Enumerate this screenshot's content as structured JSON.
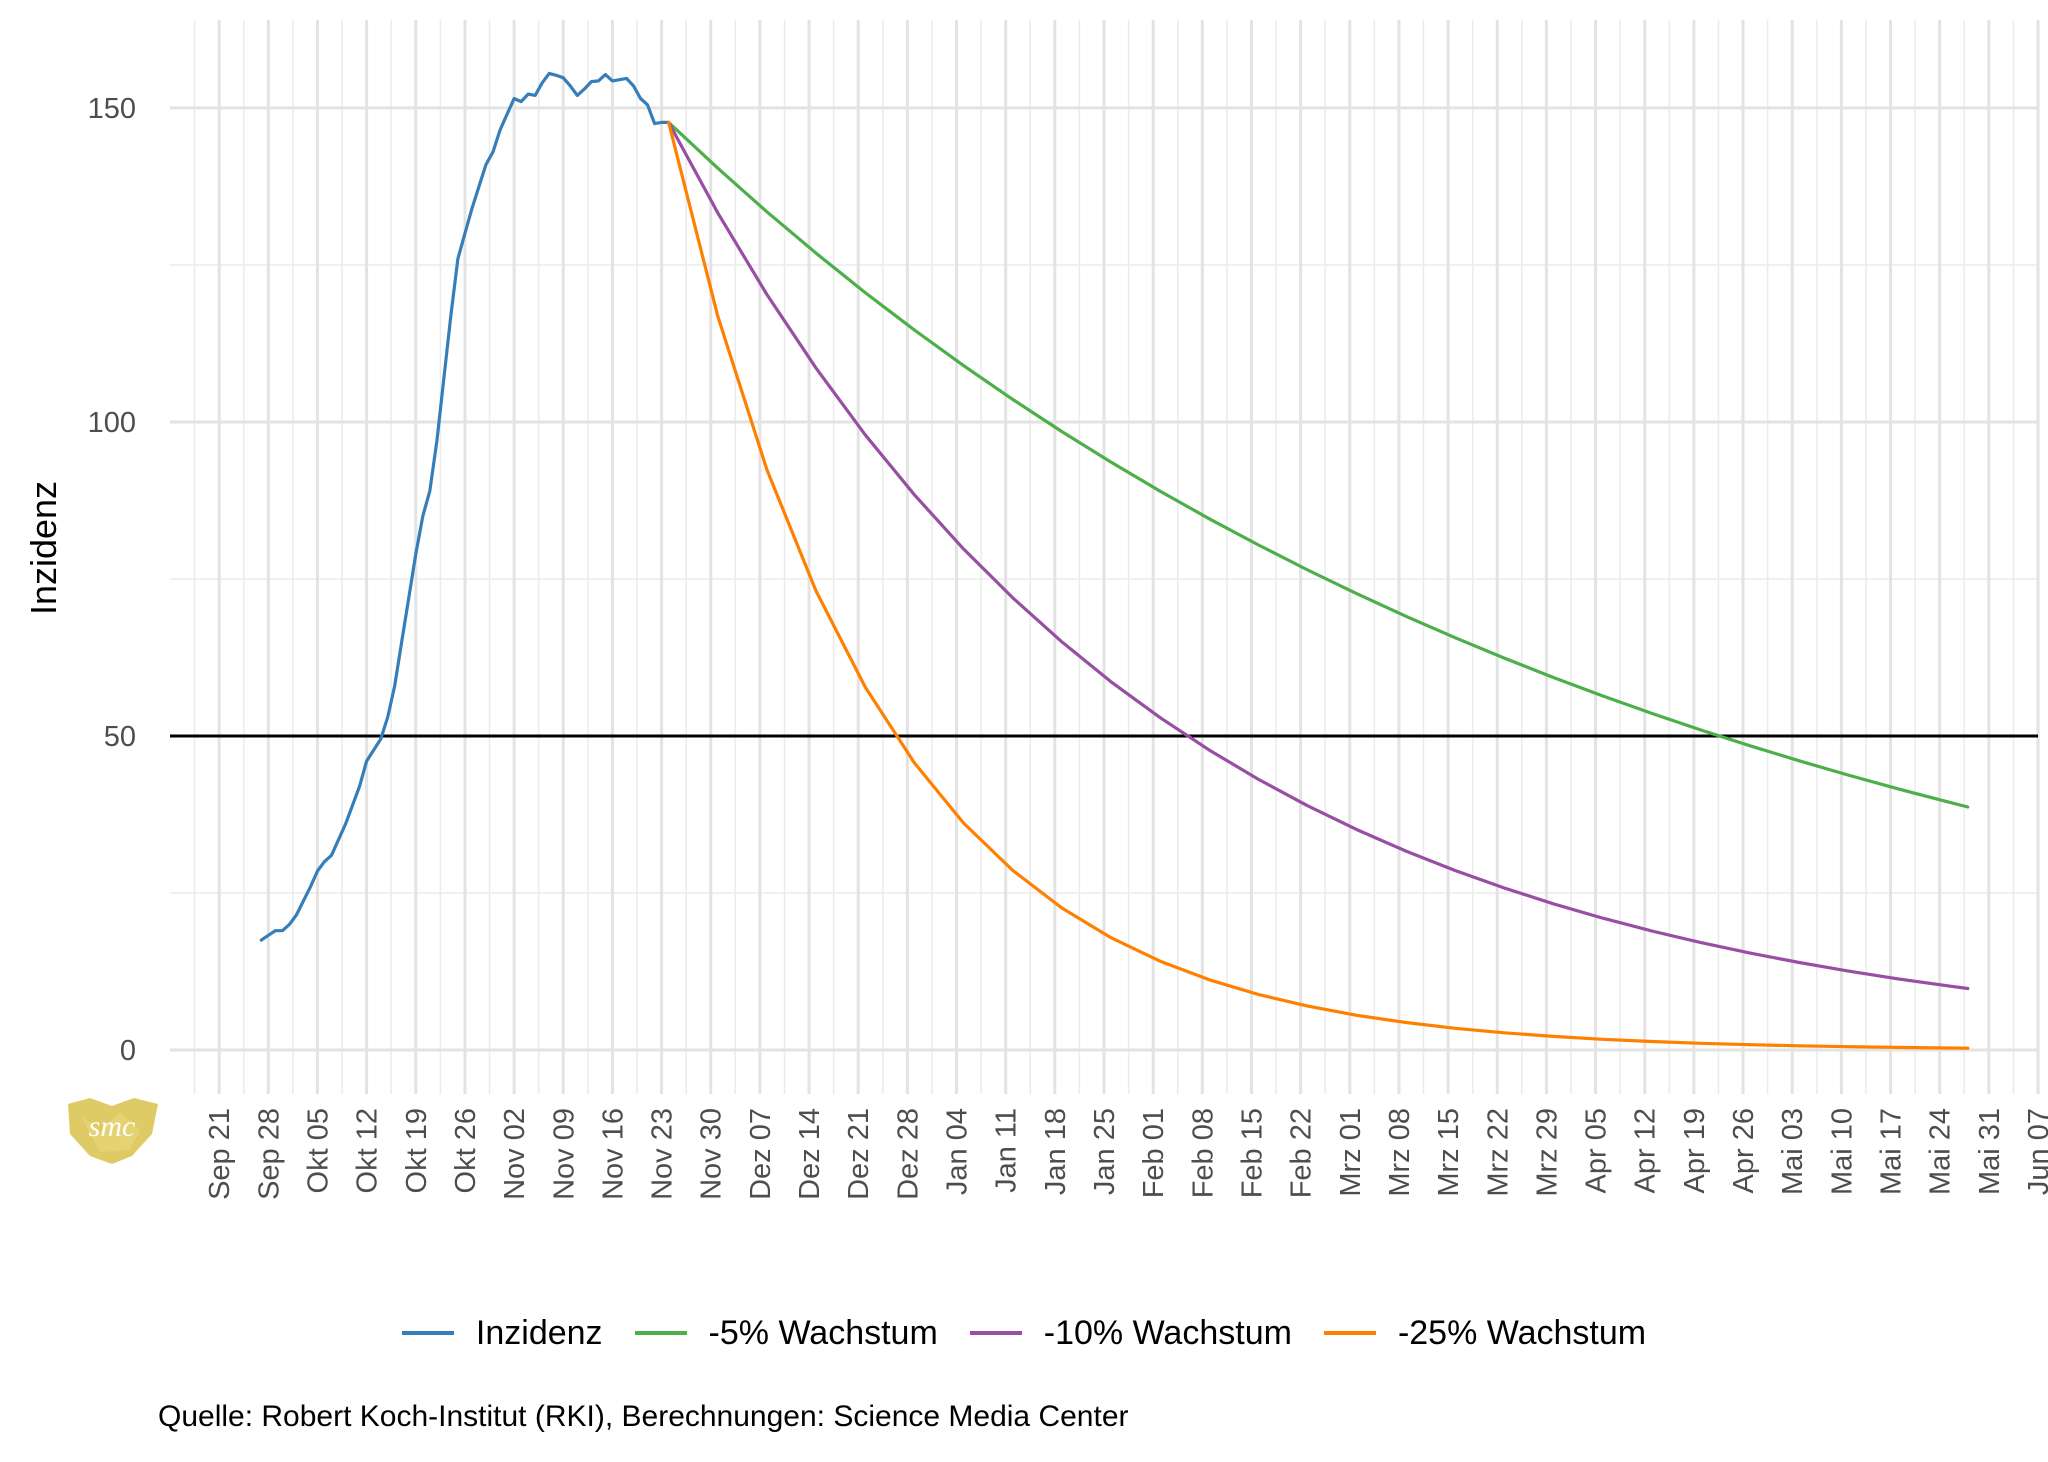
{
  "chart_data": {
    "type": "line",
    "title": "",
    "xlabel": "",
    "ylabel": "Inzidenz",
    "ylim": [
      -7,
      164
    ],
    "x_range": [
      "2020-09-14",
      "2021-06-07"
    ],
    "y_ticks": [
      0,
      50,
      100,
      150
    ],
    "x_ticks": [
      {
        "date": "2020-09-21",
        "label": "Sep 21"
      },
      {
        "date": "2020-09-28",
        "label": "Sep 28"
      },
      {
        "date": "2020-10-05",
        "label": "Okt 05"
      },
      {
        "date": "2020-10-12",
        "label": "Okt 12"
      },
      {
        "date": "2020-10-19",
        "label": "Okt 19"
      },
      {
        "date": "2020-10-26",
        "label": "Okt 26"
      },
      {
        "date": "2020-11-02",
        "label": "Nov 02"
      },
      {
        "date": "2020-11-09",
        "label": "Nov 09"
      },
      {
        "date": "2020-11-16",
        "label": "Nov 16"
      },
      {
        "date": "2020-11-23",
        "label": "Nov 23"
      },
      {
        "date": "2020-11-30",
        "label": "Nov 30"
      },
      {
        "date": "2020-12-07",
        "label": "Dez 07"
      },
      {
        "date": "2020-12-14",
        "label": "Dez 14"
      },
      {
        "date": "2020-12-21",
        "label": "Dez 21"
      },
      {
        "date": "2020-12-28",
        "label": "Dez 28"
      },
      {
        "date": "2021-01-04",
        "label": "Jan 04"
      },
      {
        "date": "2021-01-11",
        "label": "Jan 11"
      },
      {
        "date": "2021-01-18",
        "label": "Jan 18"
      },
      {
        "date": "2021-01-25",
        "label": "Jan 25"
      },
      {
        "date": "2021-02-01",
        "label": "Feb 01"
      },
      {
        "date": "2021-02-08",
        "label": "Feb 08"
      },
      {
        "date": "2021-02-15",
        "label": "Feb 15"
      },
      {
        "date": "2021-02-22",
        "label": "Feb 22"
      },
      {
        "date": "2021-03-01",
        "label": "Mrz 01"
      },
      {
        "date": "2021-03-08",
        "label": "Mrz 08"
      },
      {
        "date": "2021-03-15",
        "label": "Mrz 15"
      },
      {
        "date": "2021-03-22",
        "label": "Mrz 22"
      },
      {
        "date": "2021-03-29",
        "label": "Mrz 29"
      },
      {
        "date": "2021-04-05",
        "label": "Apr 05"
      },
      {
        "date": "2021-04-12",
        "label": "Apr 12"
      },
      {
        "date": "2021-04-19",
        "label": "Apr 19"
      },
      {
        "date": "2021-04-26",
        "label": "Apr 26"
      },
      {
        "date": "2021-05-03",
        "label": "Mai 03"
      },
      {
        "date": "2021-05-10",
        "label": "Mai 10"
      },
      {
        "date": "2021-05-17",
        "label": "Mai 17"
      },
      {
        "date": "2021-05-24",
        "label": "Mai 24"
      },
      {
        "date": "2021-05-31",
        "label": "Mai 31"
      },
      {
        "date": "2021-06-07",
        "label": "Jun 07"
      }
    ],
    "hline": 50,
    "grid": true,
    "legend_position": "bottom",
    "series": [
      {
        "name": "Inzidenz",
        "color": "#377eb8",
        "points": [
          [
            "2020-09-27",
            17.5
          ],
          [
            "2020-09-29",
            19
          ],
          [
            "2020-09-30",
            19
          ],
          [
            "2020-10-01",
            20
          ],
          [
            "2020-10-02",
            21.5
          ],
          [
            "2020-10-04",
            26
          ],
          [
            "2020-10-05",
            28.5
          ],
          [
            "2020-10-06",
            30
          ],
          [
            "2020-10-07",
            31
          ],
          [
            "2020-10-09",
            36
          ],
          [
            "2020-10-11",
            42
          ],
          [
            "2020-10-12",
            46
          ],
          [
            "2020-10-14",
            49.5
          ],
          [
            "2020-10-15",
            53
          ],
          [
            "2020-10-16",
            58
          ],
          [
            "2020-10-17",
            65
          ],
          [
            "2020-10-18",
            72
          ],
          [
            "2020-10-19",
            79
          ],
          [
            "2020-10-20",
            85
          ],
          [
            "2020-10-21",
            89
          ],
          [
            "2020-10-22",
            97
          ],
          [
            "2020-10-23",
            107
          ],
          [
            "2020-10-24",
            117
          ],
          [
            "2020-10-25",
            126
          ],
          [
            "2020-10-26",
            130
          ],
          [
            "2020-10-27",
            134
          ],
          [
            "2020-10-28",
            137.5
          ],
          [
            "2020-10-29",
            141
          ],
          [
            "2020-10-30",
            143
          ],
          [
            "2020-10-31",
            146.5
          ],
          [
            "2020-11-01",
            149
          ],
          [
            "2020-11-02",
            151.5
          ],
          [
            "2020-11-03",
            151
          ],
          [
            "2020-11-04",
            152.2
          ],
          [
            "2020-11-05",
            152
          ],
          [
            "2020-11-06",
            154
          ],
          [
            "2020-11-07",
            155.5
          ],
          [
            "2020-11-08",
            155.2
          ],
          [
            "2020-11-09",
            154.8
          ],
          [
            "2020-11-10",
            153.5
          ],
          [
            "2020-11-11",
            152
          ],
          [
            "2020-11-12",
            153
          ],
          [
            "2020-11-13",
            154.2
          ],
          [
            "2020-11-14",
            154.3
          ],
          [
            "2020-11-15",
            155.3
          ],
          [
            "2020-11-16",
            154.3
          ],
          [
            "2020-11-17",
            154.5
          ],
          [
            "2020-11-18",
            154.7
          ],
          [
            "2020-11-19",
            153.5
          ],
          [
            "2020-11-20",
            151.5
          ],
          [
            "2020-11-21",
            150.5
          ],
          [
            "2020-11-22",
            147.5
          ],
          [
            "2020-11-23",
            147.7
          ],
          [
            "2020-11-24",
            147.7
          ]
        ]
      },
      {
        "name": "-5% Wachstum",
        "color": "#4daf4a",
        "start": [
          "2020-11-24",
          147.7
        ],
        "end_date": "2021-05-28",
        "end_value": 38.7
      },
      {
        "name": "-10% Wachstum",
        "color": "#984ea3",
        "start": [
          "2020-11-24",
          147.7
        ],
        "end_date": "2021-05-28",
        "end_value": 9.8
      },
      {
        "name": "-25% Wachstum",
        "color": "#ff7f00",
        "start": [
          "2020-11-24",
          147.7
        ],
        "end_date": "2021-05-28",
        "end_value": 0.3
      }
    ]
  },
  "caption": "Quelle: Robert Koch-Institut (RKI), Berechnungen: Science Media Center",
  "logo_text": "smc"
}
